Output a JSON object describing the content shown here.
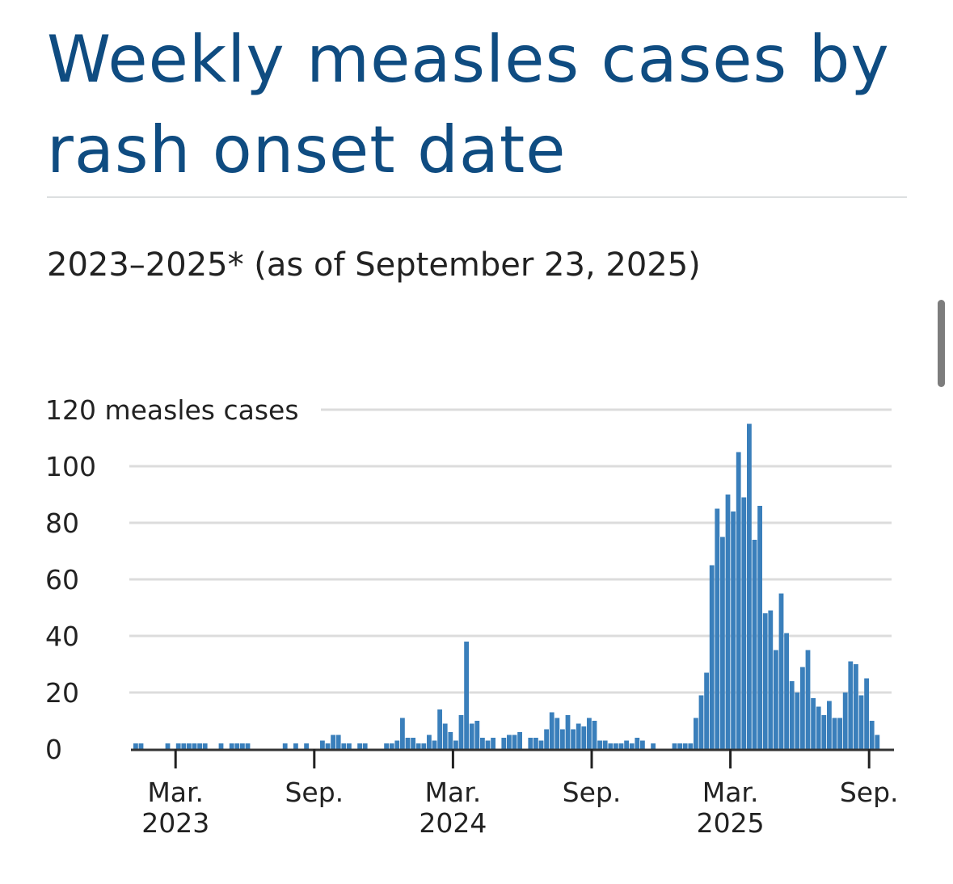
{
  "title": "Weekly measles cases by rash onset date",
  "subtitle": "2023–2025* (as of September 23, 2025)",
  "chart_data": {
    "type": "bar",
    "title": "Weekly measles cases by rash onset date",
    "subtitle": "2023–2025* (as of September 23, 2025)",
    "xlabel": "",
    "ylabel": "measles cases",
    "ylim": [
      0,
      120
    ],
    "yticks": [
      {
        "value": 0,
        "label": "0"
      },
      {
        "value": 20,
        "label": "20"
      },
      {
        "value": 40,
        "label": "40"
      },
      {
        "value": 60,
        "label": "60"
      },
      {
        "value": 80,
        "label": "80"
      },
      {
        "value": 100,
        "label": "100"
      },
      {
        "value": 120,
        "label": "120 measles cases"
      }
    ],
    "xticks": [
      {
        "week": 8,
        "label1": "Mar.",
        "label2": "2023"
      },
      {
        "week": 34,
        "label1": "Sep.",
        "label2": ""
      },
      {
        "week": 60,
        "label1": "Mar.",
        "label2": "2024"
      },
      {
        "week": 86,
        "label1": "Sep.",
        "label2": ""
      },
      {
        "week": 112,
        "label1": "Mar.",
        "label2": "2025"
      },
      {
        "week": 138,
        "label1": "Sep.",
        "label2": ""
      }
    ],
    "grid": true,
    "bar_color": "#3a7fbb",
    "values": [
      2,
      2,
      0,
      0,
      0,
      0,
      2,
      0,
      2,
      2,
      2,
      2,
      2,
      2,
      0,
      0,
      2,
      0,
      2,
      2,
      2,
      2,
      0,
      0,
      0,
      0,
      0,
      0,
      2,
      0,
      2,
      0,
      2,
      0,
      0,
      3,
      2,
      5,
      5,
      2,
      2,
      0,
      2,
      2,
      0,
      0,
      0,
      2,
      2,
      3,
      11,
      4,
      4,
      2,
      2,
      5,
      3,
      14,
      9,
      6,
      3,
      12,
      38,
      9,
      10,
      4,
      3,
      4,
      0,
      4,
      5,
      5,
      6,
      0,
      4,
      4,
      3,
      7,
      13,
      11,
      7,
      12,
      7,
      9,
      8,
      11,
      10,
      3,
      3,
      2,
      2,
      2,
      3,
      2,
      4,
      3,
      0,
      2,
      0,
      0,
      0,
      2,
      2,
      2,
      2,
      11,
      19,
      27,
      65,
      85,
      75,
      90,
      84,
      105,
      89,
      115,
      74,
      86,
      48,
      49,
      35,
      55,
      41,
      24,
      20,
      29,
      35,
      18,
      15,
      12,
      17,
      11,
      11,
      20,
      31,
      30,
      19,
      25,
      10,
      5
    ]
  }
}
